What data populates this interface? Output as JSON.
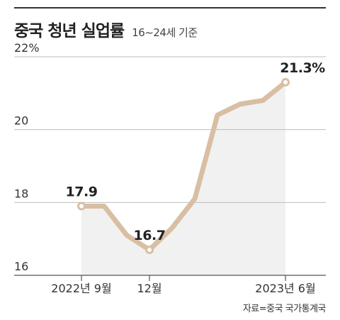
{
  "header": {
    "title": "중국 청년 실업률",
    "subtitle": "16~24세 기준"
  },
  "footer": {
    "source": "자료=중국 국가통계국"
  },
  "colors": {
    "line": "#d8bfa3",
    "area": "#f1f1f1",
    "grid": "#bdbdbd",
    "marker_fill": "#ffffff"
  },
  "chart_data": {
    "type": "line",
    "title": "중국 청년 실업률",
    "subtitle": "16~24세 기준",
    "xlabel": "",
    "ylabel": "",
    "ylim": [
      16,
      22
    ],
    "y_ticks": [
      16,
      18,
      20,
      22
    ],
    "y_tick_labels": [
      "16",
      "18",
      "20",
      "22%"
    ],
    "x": [
      "2022-09",
      "2022-10",
      "2022-11",
      "2022-12",
      "2023-01",
      "2023-02",
      "2023-03",
      "2023-04",
      "2023-05",
      "2023-06"
    ],
    "x_tick_labels": [
      {
        "x": "2022-09",
        "label": "2022년 9월"
      },
      {
        "x": "2022-12",
        "label": "12월"
      },
      {
        "x": "2023-06",
        "label": "2023년 6월"
      }
    ],
    "series": [
      {
        "values": [
          17.9,
          17.9,
          17.1,
          16.7,
          17.3,
          18.1,
          20.4,
          20.7,
          20.8,
          21.3
        ]
      }
    ],
    "data_labels": [
      {
        "x": "2022-09",
        "text": "17.9"
      },
      {
        "x": "2022-12",
        "text": "16.7"
      },
      {
        "x": "2023-06",
        "text": "21.3%"
      }
    ],
    "grid": true,
    "area_fill": true
  }
}
